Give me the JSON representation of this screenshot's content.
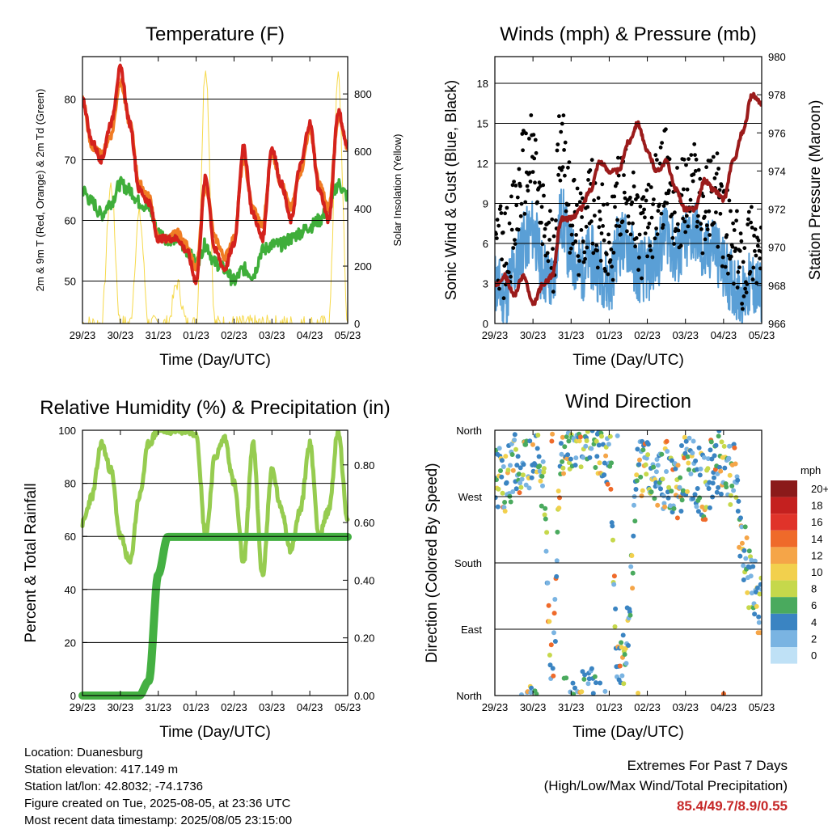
{
  "x_ticks": [
    "29/23",
    "30/23",
    "31/23",
    "01/23",
    "02/23",
    "03/23",
    "04/23",
    "05/23"
  ],
  "time_xlabel": "Time (Day/UTC)",
  "colors": {
    "temp_2m": "#d4221d",
    "temp_9m": "#f07c24",
    "dewpoint": "#3fae3a",
    "solar": "#f6d94a",
    "wind": "#000000",
    "gust": "#5a9fd6",
    "pressure": "#9b1b1b",
    "rh": "#96cc50",
    "precip": "#44b042",
    "extremes": "#c62828"
  },
  "chart_data": [
    {
      "id": "temperature",
      "type": "line",
      "title": "Temperature (F)",
      "xlabel": "Time (Day/UTC)",
      "ylabel": "2m & 9m T (Red, Orange) & 2m Td (Green)",
      "ylabel_right": "Solar Insolation (Yellow)",
      "ylim": [
        43,
        87
      ],
      "yticks": [
        50,
        60,
        70,
        80
      ],
      "ylim_right": [
        0,
        930
      ],
      "yticks_right": [
        0,
        200,
        400,
        600,
        800
      ],
      "x": [
        0,
        0.25,
        0.5,
        0.75,
        1,
        1.25,
        1.5,
        1.75,
        2,
        2.25,
        2.5,
        2.75,
        3,
        3.25,
        3.5,
        3.75,
        4,
        4.25,
        4.5,
        4.75,
        5,
        5.25,
        5.5,
        5.75,
        6,
        6.25,
        6.5,
        6.75,
        7
      ],
      "series": [
        {
          "name": "2m T",
          "values": [
            80,
            73,
            70,
            76,
            85,
            76,
            65,
            63,
            57,
            57,
            57,
            55,
            50,
            67,
            55,
            52,
            56,
            72,
            61,
            57,
            72,
            66,
            60,
            69,
            76,
            65,
            60,
            78,
            72
          ]
        },
        {
          "name": "9m T",
          "values": [
            80,
            72,
            71,
            74,
            83,
            76,
            66,
            64,
            57,
            57,
            58,
            56,
            52,
            66,
            57,
            54,
            57,
            70,
            62,
            59,
            71,
            66,
            62,
            68,
            75,
            66,
            62,
            77,
            72
          ]
        },
        {
          "name": "2m Td",
          "values": [
            65,
            63,
            61,
            63,
            66,
            65,
            63,
            62,
            58,
            57,
            57,
            55,
            53,
            56,
            53,
            52,
            50,
            52,
            51,
            55,
            56,
            56,
            57,
            58,
            59,
            60,
            62,
            66,
            64
          ]
        },
        {
          "name": "Solar",
          "values": [
            0,
            0,
            0,
            480,
            0,
            0,
            380,
            0,
            0,
            0,
            140,
            0,
            0,
            900,
            0,
            0,
            0,
            0,
            0,
            0,
            0,
            0,
            0,
            0,
            0,
            0,
            0,
            860,
            0
          ]
        }
      ]
    },
    {
      "id": "winds",
      "type": "scatter",
      "title": "Winds (mph) & Pressure (mb)",
      "xlabel": "Time (Day/UTC)",
      "ylabel": "Sonic Wind & Gust (Blue, Black)",
      "ylabel_right": "Station Pressure (Maroon)",
      "ylim": [
        0,
        20
      ],
      "yticks": [
        0,
        3,
        6,
        9,
        12,
        15,
        18
      ],
      "ylim_right": [
        966,
        980
      ],
      "yticks_right": [
        966,
        968,
        970,
        972,
        974,
        976,
        978,
        980
      ],
      "x": [
        0,
        0.25,
        0.5,
        0.75,
        1,
        1.25,
        1.5,
        1.75,
        2,
        2.25,
        2.5,
        2.75,
        3,
        3.25,
        3.5,
        3.75,
        4,
        4.25,
        4.5,
        4.75,
        5,
        5.25,
        5.5,
        5.75,
        6,
        6.25,
        6.5,
        6.75,
        7
      ],
      "series": [
        {
          "name": "Gust",
          "values": [
            7,
            6,
            8,
            12,
            13,
            8,
            6,
            15,
            9,
            7,
            10,
            8,
            6,
            10,
            11,
            7,
            8,
            10,
            12,
            9,
            10,
            11,
            9,
            11,
            8,
            6,
            5,
            7,
            5
          ]
        },
        {
          "name": "Wind",
          "values": [
            3,
            2,
            4,
            6,
            7,
            4,
            3,
            8,
            5,
            4,
            5,
            4,
            3,
            6,
            6,
            4,
            4,
            5,
            7,
            5,
            6,
            7,
            5,
            6,
            4,
            3,
            2,
            3,
            2
          ]
        },
        {
          "name": "Pressure",
          "values": [
            968,
            968.5,
            967.5,
            968.5,
            967,
            968,
            968.5,
            971.5,
            971.5,
            972,
            973,
            974.5,
            974,
            974,
            975.5,
            976.5,
            975,
            974,
            974.5,
            973,
            972,
            972,
            973.5,
            973,
            972.5,
            974.5,
            976,
            978,
            977.5
          ]
        }
      ]
    },
    {
      "id": "humidity",
      "type": "line",
      "title": "Relative Humidity (%) & Precipitation (in)",
      "xlabel": "Time (Day/UTC)",
      "ylabel": "Percent & Total Rainfall",
      "ylim": [
        0,
        100
      ],
      "yticks": [
        0,
        20,
        40,
        60,
        80,
        100
      ],
      "ylim_right": [
        0,
        0.92
      ],
      "yticks_right": [
        "0.00",
        "0.20",
        "0.40",
        "0.60",
        "0.80"
      ],
      "x": [
        0,
        0.25,
        0.5,
        0.75,
        1,
        1.25,
        1.5,
        1.75,
        2,
        2.25,
        2.5,
        2.75,
        3,
        3.25,
        3.5,
        3.75,
        4,
        4.25,
        4.5,
        4.75,
        5,
        5.25,
        5.5,
        5.75,
        6,
        6.25,
        6.5,
        6.75,
        7
      ],
      "series": [
        {
          "name": "RH",
          "values": [
            65,
            75,
            95,
            85,
            60,
            50,
            75,
            95,
            100,
            100,
            100,
            100,
            99,
            60,
            90,
            97,
            80,
            50,
            95,
            45,
            85,
            70,
            55,
            70,
            95,
            60,
            70,
            100,
            65
          ]
        },
        {
          "name": "Precip",
          "values": [
            0,
            0,
            0,
            0,
            0,
            0,
            0,
            0.05,
            0.42,
            0.55,
            0.55,
            0.55,
            0.55,
            0.55,
            0.55,
            0.55,
            0.55,
            0.55,
            0.55,
            0.55,
            0.55,
            0.55,
            0.55,
            0.55,
            0.55,
            0.55,
            0.55,
            0.55,
            0.55
          ]
        }
      ]
    },
    {
      "id": "winddir",
      "type": "scatter",
      "title": "Wind Direction",
      "xlabel": "Time (Day/UTC)",
      "ylabel": "Direction (Colored By Speed)",
      "yticks": [
        "North",
        "East",
        "South",
        "West",
        "North"
      ],
      "ylim": [
        0,
        360
      ],
      "legend_title": "mph",
      "legend_labels": [
        "20+",
        "18",
        "16",
        "14",
        "12",
        "10",
        "8",
        "6",
        "4",
        "2",
        "0"
      ],
      "legend_colors": [
        "#8b1a1a",
        "#c4201f",
        "#e0332a",
        "#ef6a2a",
        "#f5a548",
        "#f2d04d",
        "#c6d84b",
        "#4aaa5e",
        "#3a84c2",
        "#7ab4e2",
        "#bfe1f6"
      ],
      "x": [
        0,
        0.25,
        0.5,
        0.75,
        1,
        1.25,
        1.5,
        1.75,
        2,
        2.25,
        2.5,
        2.75,
        3,
        3.25,
        3.5,
        3.75,
        4,
        4.25,
        4.5,
        4.75,
        5,
        5.25,
        5.5,
        5.75,
        6,
        6.25,
        6.5,
        6.75,
        7
      ],
      "values": [
        300,
        290,
        310,
        320,
        330,
        300,
        20,
        340,
        350,
        350,
        355,
        345,
        320,
        20,
        90,
        320,
        300,
        290,
        300,
        270,
        310,
        300,
        280,
        310,
        320,
        300,
        200,
        150,
        120
      ]
    }
  ],
  "info": {
    "location": "Location: Duanesburg",
    "elevation": "Station elevation: 417.149 m",
    "latlon": "Station lat/lon: 42.8032; -74.1736",
    "created": "Figure created on Tue, 2025-08-05, at 23:36 UTC",
    "recent": "Most recent data timestamp: 2025/08/05 23:15:00"
  },
  "extremes": {
    "title": "Extremes For Past 7 Days",
    "subtitle": "(High/Low/Max Wind/Total Precipitation)",
    "values": "85.4/49.7/8.9/0.55"
  }
}
